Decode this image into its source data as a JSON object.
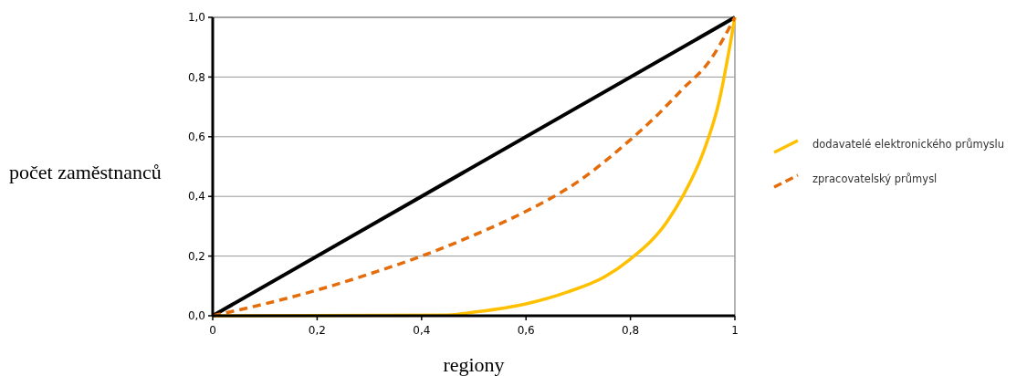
{
  "chart_data": {
    "type": "line",
    "xlabel": "regiony",
    "ylabel": "počet zaměstnanců",
    "xlim": [
      0,
      1
    ],
    "ylim": [
      0,
      1
    ],
    "xticks": [
      0,
      {
        "value": 0.2,
        "label": "0,2"
      },
      {
        "value": 0.4,
        "label": "0,4"
      },
      {
        "value": 0.6,
        "label": "0,6"
      },
      {
        "value": 0.8,
        "label": "0,8"
      },
      1
    ],
    "yticks": [
      {
        "value": 0,
        "label": "0,0"
      },
      {
        "value": 0.2,
        "label": "0,2"
      },
      {
        "value": 0.4,
        "label": "0,4"
      },
      {
        "value": 0.6,
        "label": "0,6"
      },
      {
        "value": 0.8,
        "label": "0,8"
      },
      {
        "value": 1,
        "label": "1,0"
      }
    ],
    "grid": "y",
    "legend": "right",
    "series": [
      {
        "color": "#000000",
        "x": [
          0,
          1
        ],
        "values": [
          0,
          1
        ],
        "line_style": "solid"
      },
      {
        "name": "dodavatelé elektronického průmyslu",
        "color": "#ffc000",
        "line_style": "solid",
        "x": [
          0,
          0.45,
          0.5,
          0.6,
          0.68,
          0.75,
          0.8,
          0.87,
          0.9,
          0.94,
          0.97,
          0.99,
          1
        ],
        "values": [
          0,
          0.002,
          0.012,
          0.04,
          0.08,
          0.13,
          0.19,
          0.315,
          0.4,
          0.55,
          0.72,
          0.9,
          1
        ]
      },
      {
        "name": "zpracovatelský průmysl",
        "color": "#e46c0a",
        "line_style": "dashed",
        "x": [
          0,
          0.1,
          0.2,
          0.3,
          0.4,
          0.5,
          0.6,
          0.7,
          0.8,
          0.85,
          0.9,
          0.95,
          1
        ],
        "values": [
          0,
          0.04,
          0.086,
          0.14,
          0.2,
          0.27,
          0.35,
          0.45,
          0.59,
          0.67,
          0.76,
          0.85,
          1
        ]
      }
    ]
  }
}
